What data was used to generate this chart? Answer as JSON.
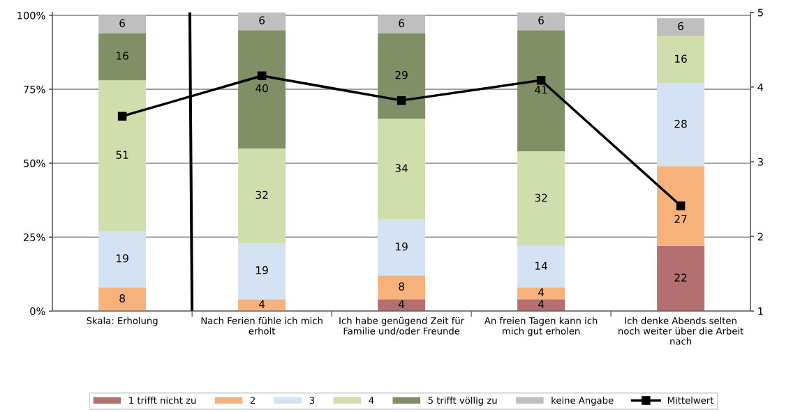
{
  "chart_data": {
    "type": "bar",
    "stacked": true,
    "categories": [
      "Skala: Erholung",
      "Nach Ferien fühle ich mich erholt",
      "Ich habe genügend Zeit für Familie und/oder Freunde",
      "An freien Tagen kann ich mich gut erholen",
      "Ich denke Abends selten noch weiter über die Arbeit nach"
    ],
    "series": [
      {
        "name": "1 trifft nicht zu",
        "color": "#b47070",
        "values": [
          0,
          0,
          4,
          4,
          22
        ],
        "value_labels": [
          null,
          null,
          "4",
          "4",
          "22"
        ]
      },
      {
        "name": "2",
        "color": "#f7b27b",
        "values": [
          8,
          4,
          8,
          4,
          27
        ],
        "value_labels": [
          "8",
          "4",
          "8",
          "4",
          "27"
        ]
      },
      {
        "name": "3",
        "color": "#d5e2f3",
        "values": [
          19,
          19,
          19,
          14,
          28
        ],
        "value_labels": [
          "19",
          "19",
          "19",
          "14",
          "28"
        ]
      },
      {
        "name": "4",
        "color": "#d0ddad",
        "values": [
          51,
          32,
          34,
          32,
          16
        ],
        "value_labels": [
          "51",
          "32",
          "34",
          "32",
          "16"
        ]
      },
      {
        "name": "5 trifft völlig zu",
        "color": "#808f65",
        "values": [
          16,
          40,
          29,
          41,
          0
        ],
        "value_labels": [
          "16",
          "40",
          "29",
          "41",
          null
        ]
      },
      {
        "name": "keine Angabe",
        "color": "#bfbfbf",
        "values": [
          6,
          6,
          6,
          6,
          6
        ],
        "value_labels": [
          "6",
          "6",
          "6",
          "6",
          "6"
        ]
      },
      {
        "name": "Mittelwert",
        "type": "line",
        "axis": "y2",
        "color": "#000000",
        "marker": "square",
        "values": [
          3.61,
          4.15,
          3.82,
          4.09,
          2.41
        ]
      }
    ],
    "ylim": [
      0,
      101
    ],
    "yticks": [
      {
        "value": 0,
        "label": "0%"
      },
      {
        "value": 25,
        "label": "25%"
      },
      {
        "value": 50,
        "label": "50%"
      },
      {
        "value": 75,
        "label": "75%"
      },
      {
        "value": 100,
        "label": "100%"
      }
    ],
    "y2lim": [
      1,
      5
    ],
    "y2ticks": [
      1,
      2,
      3,
      4,
      5
    ],
    "grid": "y",
    "legend": "bottom"
  }
}
